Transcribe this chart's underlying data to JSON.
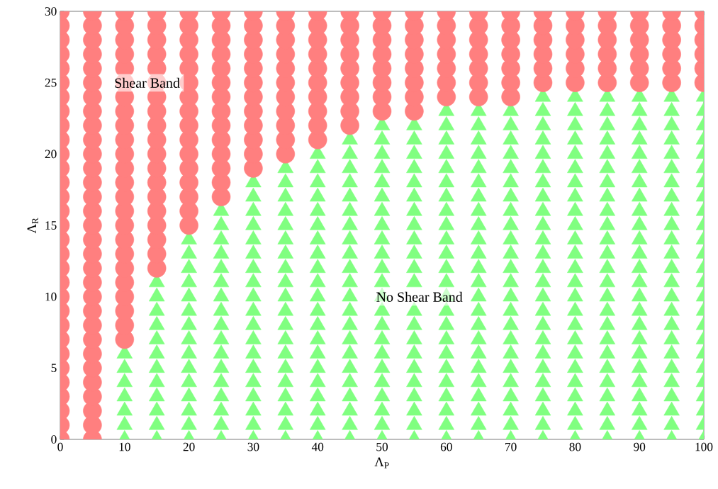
{
  "chart_data": {
    "type": "scatter",
    "xlabel": "Λ$_{P}$",
    "ylabel": "Λ$_{R}$",
    "xlim": [
      0,
      100
    ],
    "ylim": [
      0,
      30
    ],
    "xticks": [
      0,
      10,
      20,
      30,
      40,
      50,
      60,
      70,
      80,
      90,
      100
    ],
    "yticks": [
      0,
      5,
      10,
      15,
      20,
      25,
      30
    ],
    "grid": false,
    "annotations": [
      "Shear Band",
      "No Shear Band"
    ],
    "series": [
      {
        "color": "#80ff80",
        "marker": "triangle",
        "x": [
          10,
          10,
          10,
          10,
          10,
          10,
          10,
          15,
          15,
          15,
          15,
          15,
          15,
          15,
          15,
          15,
          15,
          15,
          15,
          20,
          20,
          20,
          20,
          20,
          20,
          20,
          20,
          20,
          20,
          20,
          20,
          20,
          20,
          20,
          25,
          25,
          25,
          25,
          25,
          25,
          25,
          25,
          25,
          25,
          25,
          25,
          25,
          25,
          25,
          25,
          25,
          30,
          30,
          30,
          30,
          30,
          30,
          30,
          30,
          30,
          30,
          30,
          30,
          30,
          30,
          30,
          30,
          30,
          30,
          30,
          35,
          35,
          35,
          35,
          35,
          35,
          35,
          35,
          35,
          35,
          35,
          35,
          35,
          35,
          35,
          35,
          35,
          35,
          35,
          35,
          40,
          40,
          40,
          40,
          40,
          40,
          40,
          40,
          40,
          40,
          40,
          40,
          40,
          40,
          40,
          40,
          40,
          40,
          40,
          40,
          40,
          45,
          45,
          45,
          45,
          45,
          45,
          45,
          45,
          45,
          45,
          45,
          45,
          45,
          45,
          45,
          45,
          45,
          45,
          45,
          45,
          45,
          45,
          50,
          50,
          50,
          50,
          50,
          50,
          50,
          50,
          50,
          50,
          50,
          50,
          50,
          50,
          50,
          50,
          50,
          50,
          50,
          50,
          50,
          50,
          50,
          55,
          55,
          55,
          55,
          55,
          55,
          55,
          55,
          55,
          55,
          55,
          55,
          55,
          55,
          55,
          55,
          55,
          55,
          55,
          55,
          55,
          55,
          60,
          60,
          60,
          60,
          60,
          60,
          60,
          60,
          60,
          60,
          60,
          60,
          60,
          60,
          60,
          60,
          60,
          60,
          60,
          60,
          60,
          60,
          60,
          60,
          65,
          65,
          65,
          65,
          65,
          65,
          65,
          65,
          65,
          65,
          65,
          65,
          65,
          65,
          65,
          65,
          65,
          65,
          65,
          65,
          65,
          65,
          65,
          65,
          70,
          70,
          70,
          70,
          70,
          70,
          70,
          70,
          70,
          70,
          70,
          70,
          70,
          70,
          70,
          70,
          70,
          70,
          70,
          70,
          70,
          70,
          70,
          70,
          75,
          75,
          75,
          75,
          75,
          75,
          75,
          75,
          75,
          75,
          75,
          75,
          75,
          75,
          75,
          75,
          75,
          75,
          75,
          75,
          75,
          75,
          75,
          75,
          75,
          80,
          80,
          80,
          80,
          80,
          80,
          80,
          80,
          80,
          80,
          80,
          80,
          80,
          80,
          80,
          80,
          80,
          80,
          80,
          80,
          80,
          80,
          80,
          80,
          80,
          85,
          85,
          85,
          85,
          85,
          85,
          85,
          85,
          85,
          85,
          85,
          85,
          85,
          85,
          85,
          85,
          85,
          85,
          85,
          85,
          85,
          85,
          85,
          85,
          85,
          90,
          90,
          90,
          90,
          90,
          90,
          90,
          90,
          90,
          90,
          90,
          90,
          90,
          90,
          90,
          90,
          90,
          90,
          90,
          90,
          90,
          90,
          90,
          90,
          90,
          95,
          95,
          95,
          95,
          95,
          95,
          95,
          95,
          95,
          95,
          95,
          95,
          95,
          95,
          95,
          95,
          95,
          95,
          95,
          95,
          95,
          95,
          95,
          95,
          95,
          100,
          100,
          100,
          100,
          100,
          100,
          100,
          100,
          100,
          100,
          100,
          100,
          100,
          100,
          100,
          100,
          100,
          100,
          100,
          100,
          100,
          100,
          100,
          100,
          100
        ],
        "values": [
          0,
          1,
          2,
          3,
          4,
          5,
          6,
          0,
          1,
          2,
          3,
          4,
          5,
          6,
          7,
          8,
          9,
          10,
          11,
          0,
          1,
          2,
          3,
          4,
          5,
          6,
          7,
          8,
          9,
          10,
          11,
          12,
          13,
          14,
          0,
          1,
          2,
          3,
          4,
          5,
          6,
          7,
          8,
          9,
          10,
          11,
          12,
          13,
          14,
          15,
          16,
          0,
          1,
          2,
          3,
          4,
          5,
          6,
          7,
          8,
          9,
          10,
          11,
          12,
          13,
          14,
          15,
          16,
          17,
          18,
          0,
          1,
          2,
          3,
          4,
          5,
          6,
          7,
          8,
          9,
          10,
          11,
          12,
          13,
          14,
          15,
          16,
          17,
          18,
          19,
          0,
          1,
          2,
          3,
          4,
          5,
          6,
          7,
          8,
          9,
          10,
          11,
          12,
          13,
          14,
          15,
          16,
          17,
          18,
          19,
          20,
          0,
          1,
          2,
          3,
          4,
          5,
          6,
          7,
          8,
          9,
          10,
          11,
          12,
          13,
          14,
          15,
          16,
          17,
          18,
          19,
          20,
          21,
          0,
          1,
          2,
          3,
          4,
          5,
          6,
          7,
          8,
          9,
          10,
          11,
          12,
          13,
          14,
          15,
          16,
          17,
          18,
          19,
          20,
          21,
          22,
          0,
          1,
          2,
          3,
          4,
          5,
          6,
          7,
          8,
          9,
          11,
          12,
          13,
          14,
          15,
          16,
          17,
          18,
          19,
          20,
          21,
          22,
          0,
          1,
          2,
          3,
          4,
          5,
          6,
          7,
          8,
          9,
          10,
          11,
          12,
          13,
          14,
          15,
          16,
          17,
          18,
          19,
          20,
          21,
          22,
          23,
          0,
          1,
          2,
          3,
          4,
          5,
          6,
          7,
          8,
          9,
          10,
          11,
          12,
          13,
          14,
          15,
          16,
          17,
          18,
          19,
          20,
          21,
          22,
          23,
          0,
          1,
          2,
          3,
          4,
          5,
          6,
          7,
          8,
          9,
          10,
          11,
          12,
          13,
          14,
          15,
          16,
          17,
          18,
          19,
          20,
          21,
          22,
          23,
          0,
          1,
          2,
          3,
          4,
          5,
          6,
          7,
          8,
          9,
          10,
          11,
          12,
          13,
          14,
          15,
          16,
          17,
          18,
          19,
          20,
          21,
          22,
          23,
          24,
          0,
          1,
          2,
          3,
          4,
          5,
          6,
          7,
          8,
          9,
          10,
          11,
          12,
          13,
          14,
          15,
          16,
          17,
          18,
          19,
          20,
          21,
          22,
          23,
          24,
          0,
          1,
          2,
          3,
          4,
          5,
          6,
          7,
          8,
          9,
          10,
          11,
          12,
          13,
          14,
          15,
          16,
          17,
          18,
          19,
          20,
          21,
          22,
          23,
          24,
          0,
          1,
          2,
          3,
          4,
          5,
          6,
          7,
          8,
          9,
          10,
          11,
          12,
          13,
          14,
          15,
          16,
          17,
          18,
          19,
          20,
          21,
          22,
          23,
          24,
          0,
          1,
          2,
          3,
          4,
          5,
          6,
          7,
          8,
          9,
          10,
          11,
          12,
          13,
          14,
          15,
          16,
          17,
          18,
          19,
          20,
          21,
          22,
          23,
          24,
          0,
          1,
          2,
          3,
          4,
          5,
          6,
          7,
          8,
          9,
          10,
          11,
          12,
          13,
          14,
          15,
          16,
          17,
          18,
          19,
          20,
          21,
          22,
          23,
          24
        ]
      },
      {
        "color": "#ff7f7f",
        "marker": "circle",
        "x": [
          0,
          0,
          0,
          0,
          0,
          0,
          0,
          0,
          0,
          0,
          0,
          0,
          0,
          0,
          0,
          0,
          0,
          0,
          0,
          0,
          0,
          0,
          0,
          0,
          0,
          0,
          0,
          0,
          0,
          0,
          0,
          5,
          5,
          5,
          5,
          5,
          5,
          5,
          5,
          5,
          5,
          5,
          5,
          5,
          5,
          5,
          5,
          5,
          5,
          5,
          5,
          5,
          5,
          5,
          5,
          5,
          5,
          5,
          5,
          5,
          5,
          5,
          10,
          10,
          10,
          10,
          10,
          10,
          10,
          10,
          10,
          10,
          10,
          10,
          10,
          10,
          10,
          10,
          10,
          10,
          10,
          10,
          10,
          10,
          10,
          10,
          15,
          15,
          15,
          15,
          15,
          15,
          15,
          15,
          15,
          15,
          15,
          15,
          15,
          15,
          15,
          15,
          15,
          15,
          15,
          20,
          20,
          20,
          20,
          20,
          20,
          20,
          20,
          20,
          20,
          20,
          20,
          20,
          20,
          20,
          20,
          25,
          25,
          25,
          25,
          25,
          25,
          25,
          25,
          25,
          25,
          25,
          25,
          25,
          25,
          30,
          30,
          30,
          30,
          30,
          30,
          30,
          30,
          30,
          30,
          30,
          30,
          35,
          35,
          35,
          35,
          35,
          35,
          35,
          35,
          35,
          35,
          35,
          40,
          40,
          40,
          40,
          40,
          40,
          40,
          40,
          40,
          40,
          45,
          45,
          45,
          45,
          45,
          45,
          45,
          45,
          45,
          50,
          50,
          50,
          50,
          50,
          50,
          50,
          50,
          55,
          55,
          55,
          55,
          55,
          55,
          55,
          55,
          60,
          60,
          60,
          60,
          60,
          60,
          60,
          65,
          65,
          65,
          65,
          65,
          65,
          65,
          70,
          70,
          70,
          70,
          70,
          70,
          70,
          75,
          75,
          75,
          75,
          75,
          75,
          80,
          80,
          80,
          80,
          80,
          80,
          85,
          85,
          85,
          85,
          85,
          85,
          90,
          90,
          90,
          90,
          90,
          90,
          95,
          95,
          95,
          95,
          95,
          95,
          100,
          100,
          100,
          100,
          100,
          100
        ],
        "values": [
          0,
          1,
          2,
          3,
          4,
          5,
          6,
          7,
          8,
          9,
          10,
          11,
          12,
          13,
          14,
          15,
          16,
          17,
          18,
          19,
          20,
          21,
          22,
          23,
          24,
          25,
          26,
          27,
          28,
          29,
          30,
          0,
          1,
          2,
          3,
          4,
          5,
          6,
          7,
          8,
          9,
          10,
          11,
          12,
          13,
          14,
          15,
          16,
          17,
          18,
          19,
          20,
          21,
          22,
          23,
          24,
          25,
          26,
          27,
          28,
          29,
          30,
          7,
          8,
          9,
          10,
          11,
          12,
          13,
          14,
          15,
          16,
          17,
          18,
          19,
          20,
          21,
          22,
          23,
          24,
          25,
          26,
          27,
          28,
          29,
          30,
          12,
          13,
          14,
          15,
          16,
          17,
          18,
          19,
          20,
          21,
          22,
          23,
          24,
          25,
          26,
          27,
          28,
          29,
          30,
          15,
          16,
          17,
          18,
          19,
          20,
          21,
          22,
          23,
          24,
          25,
          26,
          27,
          28,
          29,
          30,
          17,
          18,
          19,
          20,
          21,
          22,
          23,
          24,
          25,
          26,
          27,
          28,
          29,
          30,
          19,
          20,
          21,
          22,
          23,
          24,
          25,
          26,
          27,
          28,
          29,
          30,
          20,
          21,
          22,
          23,
          24,
          25,
          26,
          27,
          28,
          29,
          30,
          21,
          22,
          23,
          24,
          25,
          26,
          27,
          28,
          29,
          30,
          22,
          23,
          24,
          25,
          26,
          27,
          28,
          29,
          30,
          23,
          24,
          25,
          26,
          27,
          28,
          29,
          30,
          23,
          24,
          25,
          26,
          27,
          28,
          29,
          30,
          24,
          25,
          26,
          27,
          28,
          29,
          30,
          24,
          25,
          26,
          27,
          28,
          29,
          30,
          24,
          25,
          26,
          27,
          28,
          29,
          30,
          25,
          26,
          27,
          28,
          29,
          30,
          25,
          26,
          27,
          28,
          29,
          30,
          25,
          26,
          27,
          28,
          29,
          30,
          25,
          26,
          27,
          28,
          29,
          30,
          25,
          26,
          27,
          28,
          29,
          30,
          25,
          26,
          27,
          28,
          29,
          30
        ]
      }
    ]
  }
}
